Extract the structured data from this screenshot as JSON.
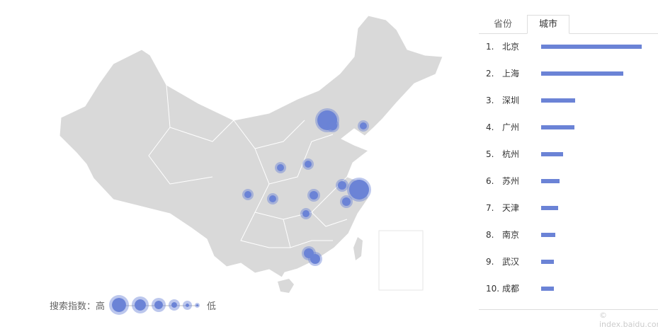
{
  "tabs": [
    {
      "label": "省份",
      "active": false
    },
    {
      "label": "城市",
      "active": true
    }
  ],
  "ranking": [
    {
      "rank": "1.",
      "city": "北京",
      "value": 100
    },
    {
      "rank": "2.",
      "city": "上海",
      "value": 82
    },
    {
      "rank": "3.",
      "city": "深圳",
      "value": 34
    },
    {
      "rank": "4.",
      "city": "广州",
      "value": 33
    },
    {
      "rank": "5.",
      "city": "杭州",
      "value": 22
    },
    {
      "rank": "6.",
      "city": "苏州",
      "value": 18
    },
    {
      "rank": "7.",
      "city": "天津",
      "value": 17
    },
    {
      "rank": "8.",
      "city": "南京",
      "value": 14
    },
    {
      "rank": "9.",
      "city": "武汉",
      "value": 13
    },
    {
      "rank": "10.",
      "city": "成都",
      "value": 13
    }
  ],
  "legend": {
    "label": "搜索指数：高",
    "low": "低"
  },
  "colors": {
    "bubble": "#6b83d6",
    "land": "#d9d9d9",
    "border": "#ffffff"
  },
  "watermark": "© index.baidu.com"
}
